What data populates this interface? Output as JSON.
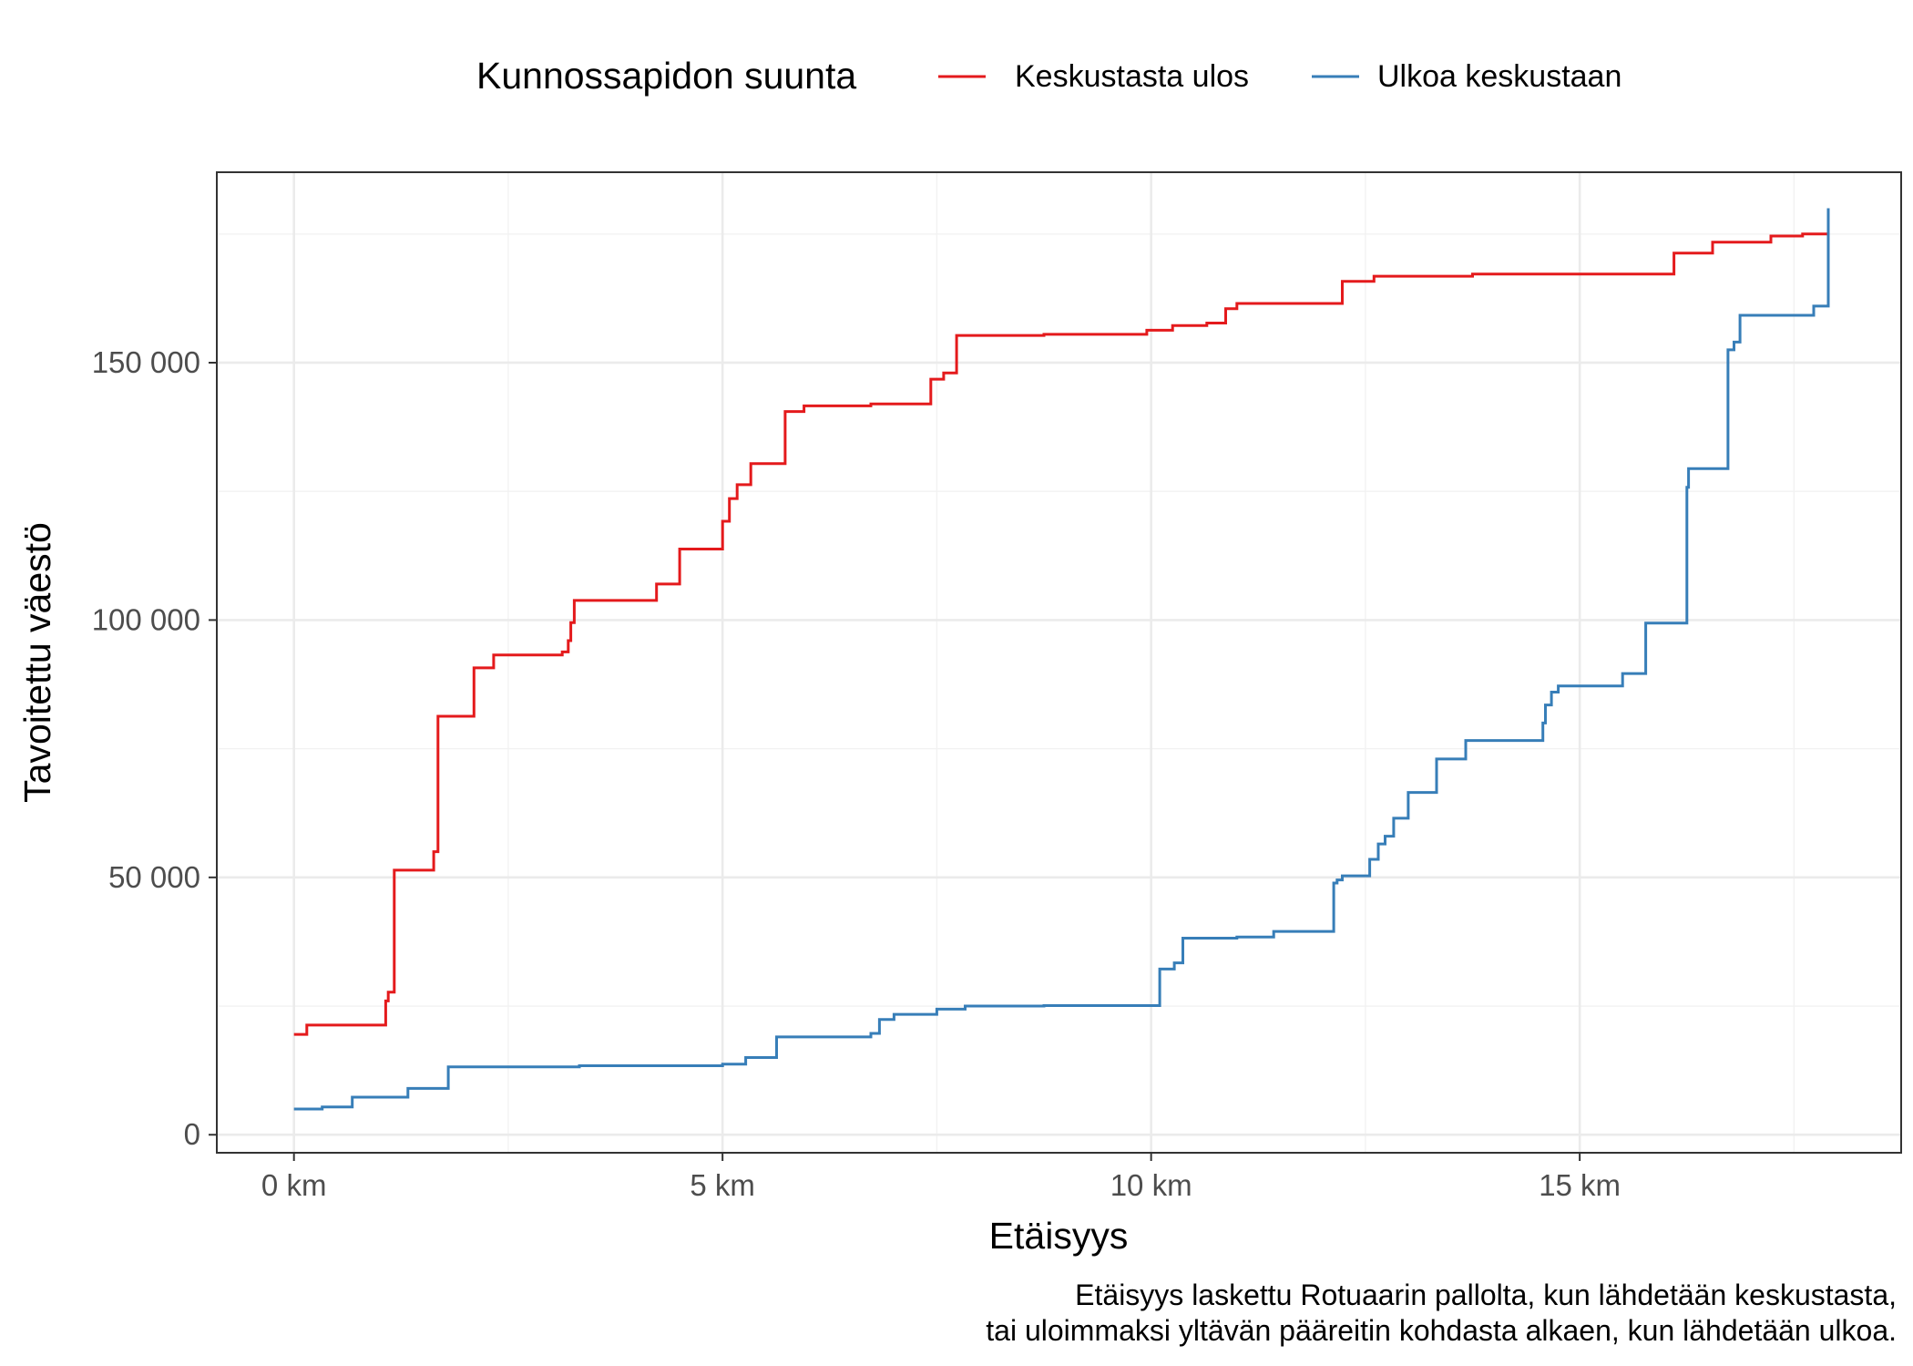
{
  "chart_data": {
    "type": "line",
    "step": true,
    "xlabel": "Etäisyys",
    "ylabel": "Tavoitettu väestö",
    "xlim": [
      -0.9,
      18.75
    ],
    "ylim": [
      -3500,
      187000
    ],
    "x_ticks": [
      0,
      5,
      10,
      15
    ],
    "x_tick_labels": [
      "0 km",
      "5 km",
      "10 km",
      "15 km"
    ],
    "x_minor_ticks": [
      2.5,
      7.5,
      12.5,
      17.5
    ],
    "y_ticks": [
      0,
      50000,
      100000,
      150000
    ],
    "y_tick_labels": [
      "0",
      "50 000",
      "100 000",
      "150 000"
    ],
    "y_minor_ticks": [
      25000,
      75000,
      125000,
      175000
    ],
    "grid": true,
    "legend": {
      "title": "Kunnossapidon suunta",
      "position": "top"
    },
    "caption": [
      "Etäisyys laskettu Rotuaarin pallolta, kun lähdetään keskustasta,",
      "tai uloimmaksi yltävän pääreitin kohdasta alkaen, kun lähdetään ulkoa."
    ],
    "series": [
      {
        "name": "Keskustasta ulos",
        "color": "#e41a1c",
        "x": [
          0.0,
          0.15,
          1.07,
          1.1,
          1.17,
          1.63,
          1.68,
          2.1,
          2.33,
          3.13,
          3.2,
          3.23,
          3.27,
          4.23,
          4.5,
          5.0,
          5.08,
          5.17,
          5.33,
          5.73,
          5.95,
          6.73,
          7.43,
          7.58,
          7.73,
          8.75,
          9.95,
          10.25,
          10.65,
          10.87,
          11.0,
          12.23,
          12.6,
          13.75,
          16.1,
          16.55,
          17.23,
          17.6,
          17.9
        ],
        "y": [
          19500,
          21300,
          26000,
          27700,
          51400,
          55000,
          81300,
          90700,
          93200,
          93800,
          96000,
          99500,
          103800,
          107000,
          113800,
          119200,
          123600,
          126300,
          130400,
          140500,
          141600,
          142000,
          146800,
          148000,
          155300,
          155500,
          156300,
          157200,
          157700,
          160500,
          161500,
          165800,
          166800,
          167200,
          171300,
          173400,
          174600,
          175000,
          175000
        ]
      },
      {
        "name": "Ulkoa keskustaan",
        "color": "#377eb8",
        "x": [
          0.0,
          0.33,
          0.68,
          1.33,
          1.8,
          3.33,
          5.0,
          5.27,
          5.63,
          6.73,
          6.83,
          7.0,
          7.5,
          7.83,
          8.75,
          10.1,
          10.27,
          10.37,
          11.0,
          11.43,
          12.13,
          12.17,
          12.23,
          12.55,
          12.65,
          12.73,
          12.83,
          13.0,
          13.33,
          13.67,
          14.57,
          14.6,
          14.67,
          14.75,
          15.5,
          15.77,
          16.25,
          16.27,
          16.73,
          16.8,
          16.87,
          17.73,
          17.9
        ],
        "y": [
          5000,
          5400,
          7300,
          9000,
          13200,
          13400,
          13700,
          15000,
          19000,
          19700,
          22400,
          23400,
          24400,
          25000,
          25100,
          32200,
          33400,
          38200,
          38400,
          39500,
          48900,
          49500,
          50300,
          53500,
          56500,
          58000,
          61500,
          66500,
          73000,
          76600,
          80000,
          83500,
          86000,
          87200,
          89600,
          99400,
          125800,
          129400,
          152500,
          154000,
          159200,
          161000,
          180000
        ]
      }
    ]
  }
}
